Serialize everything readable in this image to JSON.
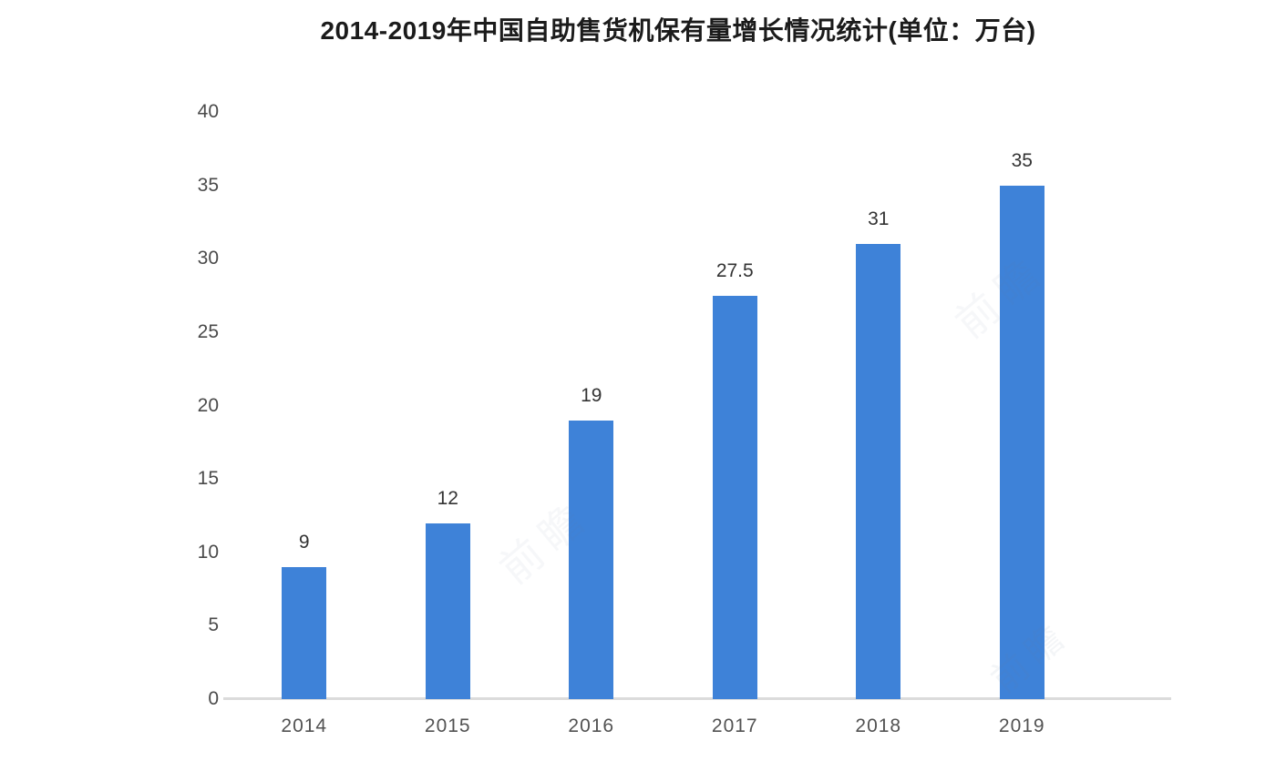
{
  "chart_data": {
    "type": "bar",
    "title": "2014-2019年中国自助售货机保有量增长情况统计(单位：万台)",
    "categories": [
      "2014",
      "2015",
      "2016",
      "2017",
      "2018",
      "2019"
    ],
    "values": [
      9,
      12,
      19,
      27.5,
      31,
      35
    ],
    "value_labels": [
      "9",
      "12",
      "19",
      "27.5",
      "31",
      "35"
    ],
    "xlabel": "",
    "ylabel": "",
    "ylim": [
      0,
      40
    ],
    "yticks": [
      0,
      5,
      10,
      15,
      20,
      25,
      30,
      35,
      40
    ],
    "grid": "off",
    "legend": "none",
    "bar_color": "#3e82d8",
    "axis_line_color": "#dbdbdb",
    "tick_label_color": "#4a4a4a",
    "value_label_color": "#333333",
    "title_color": "#1b1b1b"
  },
  "watermark": {
    "text": "前瞻"
  }
}
